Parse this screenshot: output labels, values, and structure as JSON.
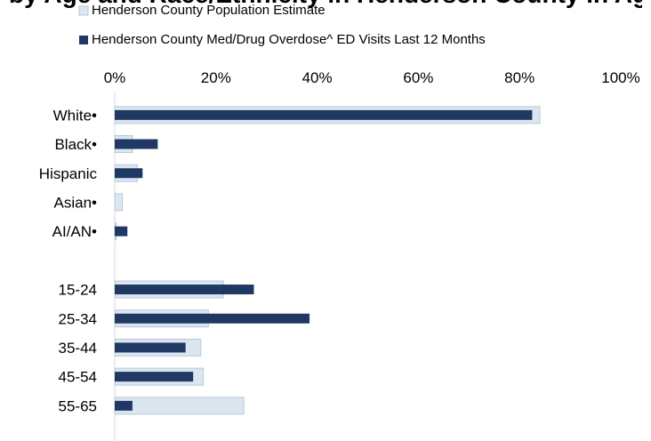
{
  "title_fragment": "by Age and Race/Ethnicity in Henderson County in Ag",
  "chart_data": {
    "type": "bar",
    "orientation": "horizontal",
    "categories": [
      "White•",
      "Black•",
      "Hispanic",
      "Asian•",
      "AI/AN•",
      "",
      "15-24",
      "25-34",
      "35-44",
      "45-54",
      "55-65"
    ],
    "series": [
      {
        "name": "Henderson County Population Estimate",
        "color": "#dce6f0",
        "values": [
          84,
          3.5,
          4.5,
          1.5,
          0.3,
          null,
          21.5,
          18.5,
          17,
          17.5,
          25.5
        ]
      },
      {
        "name": "Henderson County Med/Drug Overdose^ ED Visits Last 12 Months",
        "color": "#1f3864",
        "values": [
          82.5,
          8.5,
          5.5,
          0,
          2.5,
          null,
          27.5,
          38.5,
          14,
          15.5,
          3.5
        ]
      }
    ],
    "xaxis": {
      "ticks": [
        "0%",
        "20%",
        "40%",
        "60%",
        "80%",
        "100%"
      ],
      "range": [
        0,
        100
      ],
      "position": "top"
    },
    "grid": false,
    "legend": "top"
  }
}
